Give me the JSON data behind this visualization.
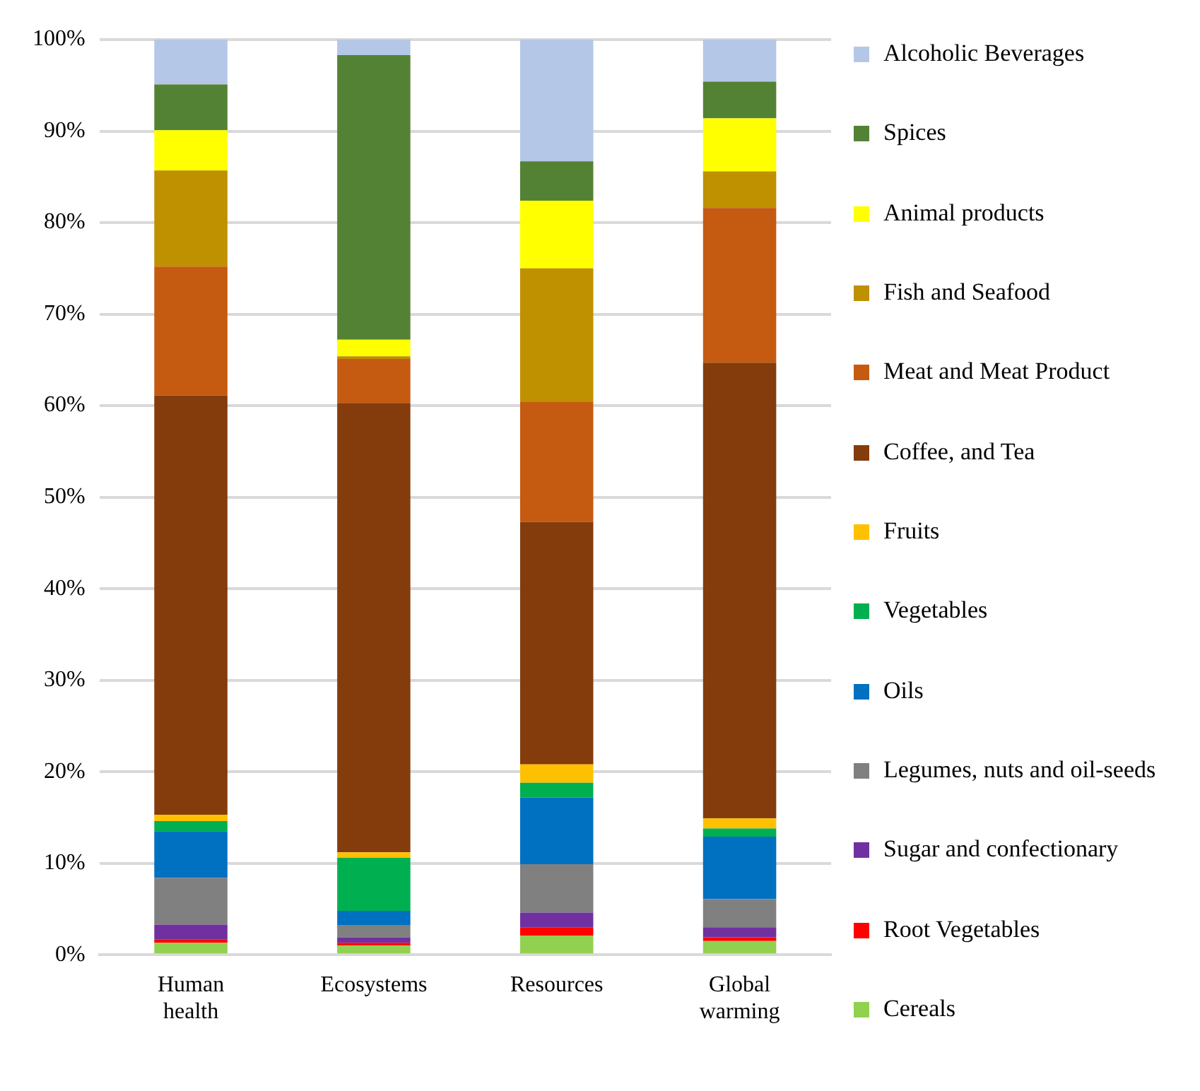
{
  "chart_data": {
    "type": "bar",
    "stacked": true,
    "categories": [
      "Human health",
      "Ecosystems",
      "Resources",
      "Global warming"
    ],
    "ylim": [
      0,
      100
    ],
    "yticks": [
      {
        "value": 0,
        "label": "0%"
      },
      {
        "value": 10,
        "label": "10%"
      },
      {
        "value": 20,
        "label": "20%"
      },
      {
        "value": 30,
        "label": "30%"
      },
      {
        "value": 40,
        "label": "40%"
      },
      {
        "value": 50,
        "label": "50%"
      },
      {
        "value": 60,
        "label": "60%"
      },
      {
        "value": 70,
        "label": "70%"
      },
      {
        "value": 80,
        "label": "80%"
      },
      {
        "value": 90,
        "label": "90%"
      },
      {
        "value": 100,
        "label": "100%"
      }
    ],
    "grid": "y",
    "legend": "right",
    "series": [
      {
        "name": "Cereals",
        "color": "#92d050",
        "values": [
          1.3,
          1.0,
          2.1,
          1.5
        ]
      },
      {
        "name": "Root Vegetables",
        "color": "#ff0000",
        "values": [
          0.4,
          0.3,
          0.9,
          0.4
        ]
      },
      {
        "name": "Sugar and confectionary",
        "color": "#7030a0",
        "values": [
          1.6,
          0.6,
          1.6,
          1.1
        ]
      },
      {
        "name": "Legumes, nuts and oil-seeds",
        "color": "#808080",
        "values": [
          5.1,
          1.3,
          5.3,
          3.1
        ]
      },
      {
        "name": "Oils",
        "color": "#0070c0",
        "values": [
          5.1,
          1.6,
          7.3,
          6.8
        ]
      },
      {
        "name": "Vegetables",
        "color": "#00b050",
        "values": [
          1.1,
          5.8,
          1.6,
          0.9
        ]
      },
      {
        "name": "Fruits",
        "color": "#ffc000",
        "values": [
          0.7,
          0.6,
          2.0,
          1.1
        ]
      },
      {
        "name": "Coffee, and Tea",
        "color": "#843c0c",
        "values": [
          45.8,
          49.1,
          26.5,
          49.8
        ]
      },
      {
        "name": "Meat and Meat Product",
        "color": "#c55a11",
        "values": [
          14.1,
          4.8,
          13.1,
          16.9
        ]
      },
      {
        "name": "Fish and Seafood",
        "color": "#bf9000",
        "values": [
          10.5,
          0.3,
          14.6,
          4.0
        ]
      },
      {
        "name": "Animal products",
        "color": "#ffff00",
        "values": [
          4.4,
          1.8,
          7.4,
          5.8
        ]
      },
      {
        "name": "Spices",
        "color": "#548235",
        "values": [
          5.0,
          31.1,
          4.3,
          4.0
        ]
      },
      {
        "name": "Alcoholic Beverages",
        "color": "#b4c7e7",
        "values": [
          4.9,
          1.7,
          13.3,
          4.6
        ]
      }
    ]
  }
}
